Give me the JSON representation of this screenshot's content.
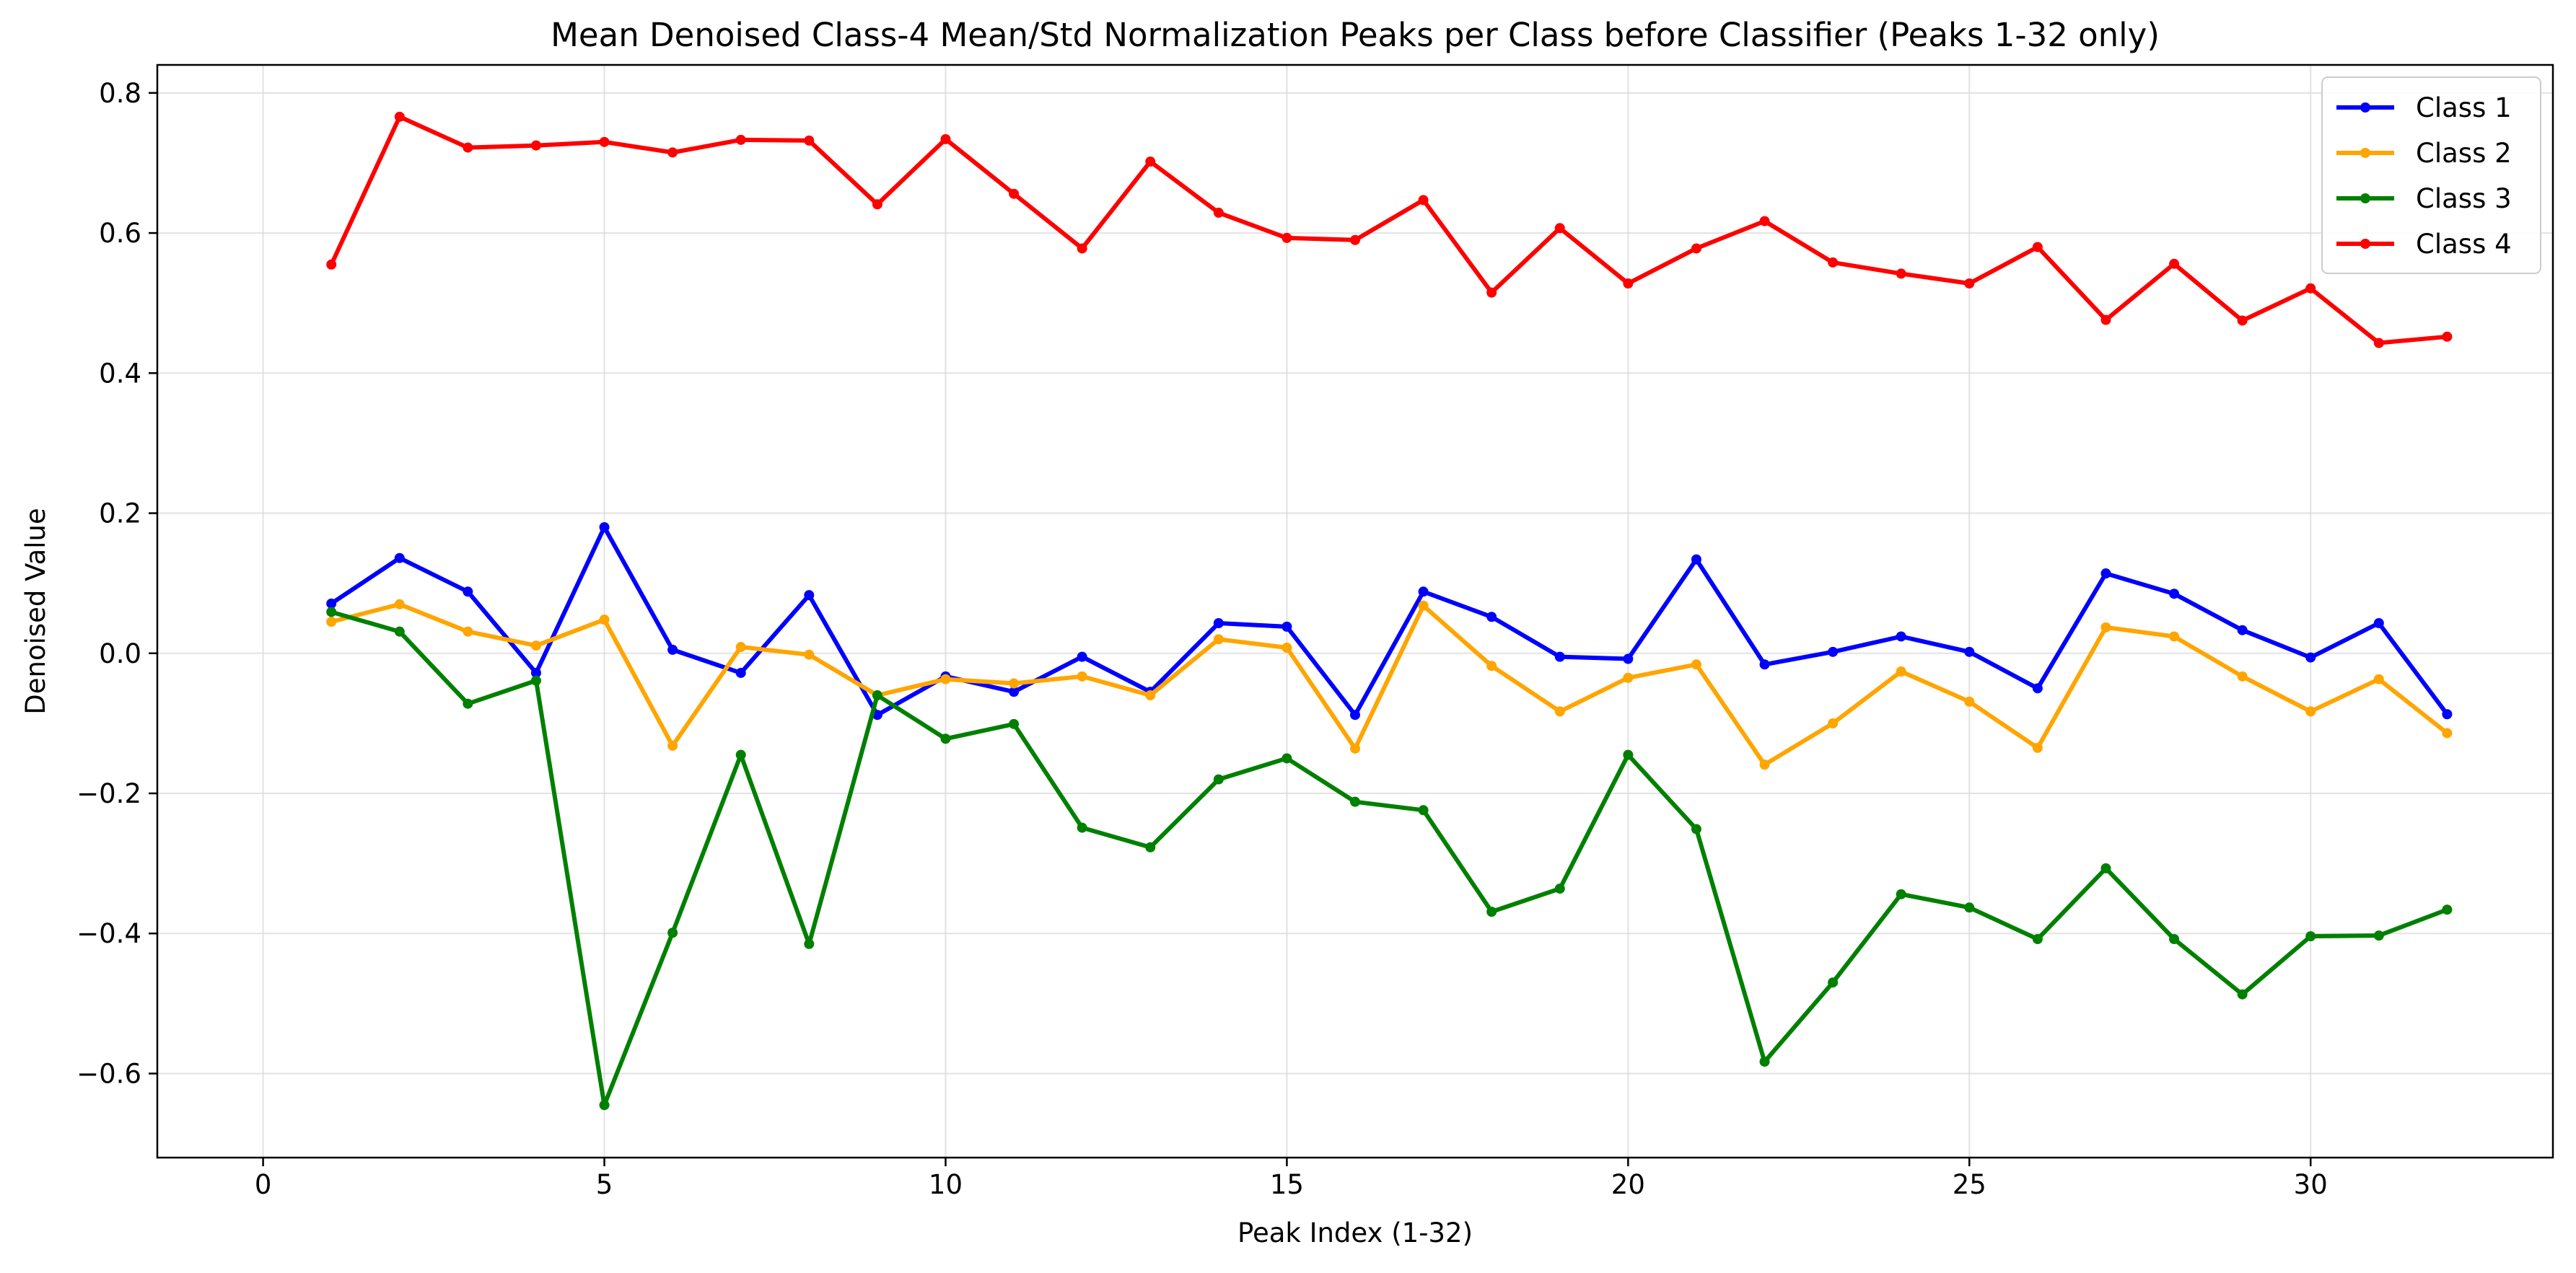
{
  "chart_data": {
    "type": "line",
    "title": "Mean Denoised Class-4 Mean/Std Normalization Peaks per Class before Classifier (Peaks 1-32 only)",
    "xlabel": "Peak Index (1-32)",
    "ylabel": "Denoised Value",
    "xlim": [
      -1.55,
      33.55
    ],
    "ylim": [
      -0.72,
      0.84
    ],
    "xticks": [
      0,
      5,
      10,
      15,
      20,
      25,
      30
    ],
    "yticks": [
      -0.6,
      -0.4,
      -0.2,
      0.0,
      0.2,
      0.4,
      0.6,
      0.8
    ],
    "xtick_labels": [
      "0",
      "5",
      "10",
      "15",
      "20",
      "25",
      "30"
    ],
    "ytick_labels": [
      "−0.6",
      "−0.4",
      "−0.2",
      "0.0",
      "0.2",
      "0.4",
      "0.6",
      "0.8"
    ],
    "grid": true,
    "legend_position": "top-right",
    "x": [
      1,
      2,
      3,
      4,
      5,
      6,
      7,
      8,
      9,
      10,
      11,
      12,
      13,
      14,
      15,
      16,
      17,
      18,
      19,
      20,
      21,
      22,
      23,
      24,
      25,
      26,
      27,
      28,
      29,
      30,
      31,
      32
    ],
    "series": [
      {
        "name": "Class 1",
        "color": "#0000ff",
        "values": [
          0.071,
          0.136,
          0.088,
          -0.028,
          0.18,
          0.005,
          -0.028,
          0.083,
          -0.088,
          -0.033,
          -0.055,
          -0.005,
          -0.055,
          0.043,
          0.038,
          -0.088,
          0.088,
          0.052,
          -0.005,
          -0.008,
          0.134,
          -0.016,
          0.002,
          0.024,
          0.002,
          -0.05,
          0.114,
          0.085,
          0.033,
          -0.006,
          0.043,
          -0.087
        ]
      },
      {
        "name": "Class 2",
        "color": "#ffa500",
        "values": [
          0.045,
          0.07,
          0.031,
          0.011,
          0.048,
          -0.132,
          0.009,
          -0.002,
          -0.06,
          -0.037,
          -0.043,
          -0.033,
          -0.06,
          0.02,
          0.008,
          -0.136,
          0.068,
          -0.018,
          -0.083,
          -0.035,
          -0.016,
          -0.159,
          -0.1,
          -0.026,
          -0.069,
          -0.135,
          0.037,
          0.024,
          -0.033,
          -0.083,
          -0.037,
          -0.114
        ]
      },
      {
        "name": "Class 3",
        "color": "#008000",
        "values": [
          0.059,
          0.031,
          -0.072,
          -0.039,
          -0.645,
          -0.399,
          -0.145,
          -0.415,
          -0.06,
          -0.122,
          -0.101,
          -0.249,
          -0.277,
          -0.18,
          -0.15,
          -0.212,
          -0.224,
          -0.369,
          -0.336,
          -0.145,
          -0.251,
          -0.583,
          -0.47,
          -0.344,
          -0.363,
          -0.408,
          -0.307,
          -0.408,
          -0.487,
          -0.404,
          -0.403,
          -0.366
        ]
      },
      {
        "name": "Class 4",
        "color": "#ff0000",
        "values": [
          0.555,
          0.766,
          0.722,
          0.725,
          0.73,
          0.715,
          0.733,
          0.732,
          0.641,
          0.734,
          0.656,
          0.578,
          0.702,
          0.629,
          0.593,
          0.59,
          0.647,
          0.515,
          0.607,
          0.528,
          0.578,
          0.617,
          0.558,
          0.542,
          0.528,
          0.58,
          0.476,
          0.556,
          0.475,
          0.521,
          0.443,
          0.452
        ]
      }
    ]
  }
}
